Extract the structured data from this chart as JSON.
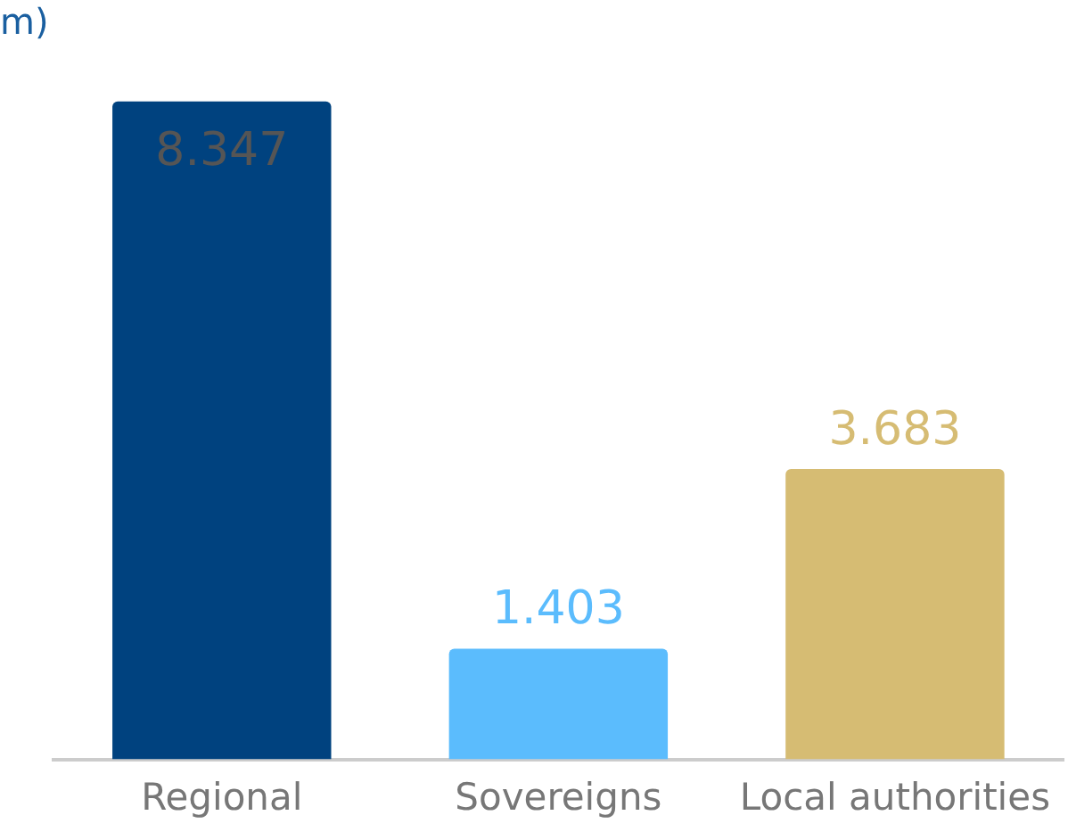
{
  "chart_data": {
    "type": "bar",
    "title": "m)",
    "categories": [
      "Regional",
      "Sovereigns",
      "Local authorities"
    ],
    "values": [
      8.347,
      1.403,
      3.683
    ],
    "colors": [
      "#00427f",
      "#5bbcfd",
      "#d6bc73"
    ],
    "data_labels": true,
    "grid": false,
    "legend": false
  }
}
